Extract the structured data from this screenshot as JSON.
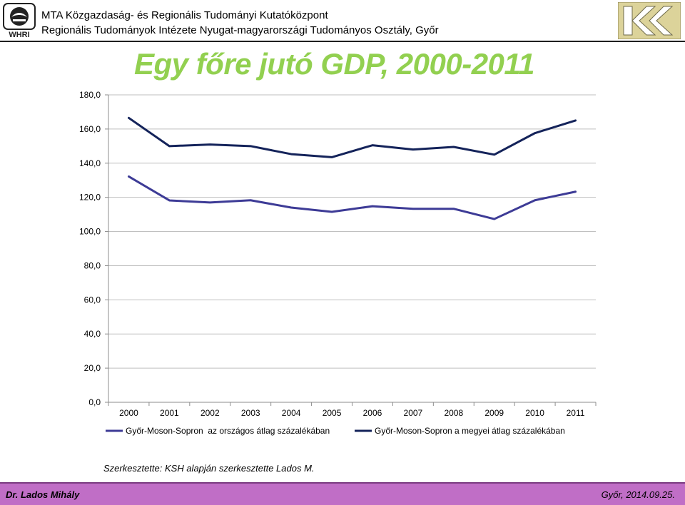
{
  "header": {
    "logo_left_text": "WHRI",
    "institute_line1": "MTA Közgazdaság- és Regionális Tudományi Kutatóközpont",
    "institute_line2": "Regionális Tudományok Intézete Nyugat-magyarországi Tudományos Osztály, Győr",
    "logo_right_icon": "rkk-logo-icon"
  },
  "slide": {
    "title": "Egy főre jutó GDP, 2000-2011",
    "credit": "Szerkesztette: KSH alapján szerkesztette Lados M."
  },
  "footer": {
    "author": "Dr. Lados Mihály",
    "date": "Győr, 2014.09.25."
  },
  "colors": {
    "title": "#92d050",
    "series1": "#3d3b96",
    "series2": "#14235a",
    "footer_bg": "#c06ec6"
  },
  "chart_data": {
    "type": "line",
    "title": "",
    "xlabel": "",
    "ylabel": "",
    "x": [
      "2000",
      "2001",
      "2002",
      "2003",
      "2004",
      "2005",
      "2006",
      "2007",
      "2008",
      "2009",
      "2010",
      "2011"
    ],
    "yticks": [
      "0,0",
      "20,0",
      "40,0",
      "60,0",
      "80,0",
      "100,0",
      "120,0",
      "140,0",
      "160,0",
      "180,0"
    ],
    "ylim": [
      0,
      180
    ],
    "grid": true,
    "legend_position": "bottom",
    "series": [
      {
        "name": "Győr-Moson-Sopron  az országos átlag százalékában",
        "color": "#3d3b96",
        "values": [
          132.2,
          118.2,
          117.0,
          118.3,
          114.0,
          111.5,
          114.8,
          113.3,
          113.3,
          107.3,
          118.3,
          123.3
        ]
      },
      {
        "name": "Győr-Moson-Sopron a megyei átlag százalékában",
        "color": "#14235a",
        "values": [
          166.5,
          150.0,
          150.9,
          150.0,
          145.3,
          143.5,
          150.5,
          148.0,
          149.5,
          145.0,
          157.6,
          165.0
        ]
      }
    ]
  }
}
